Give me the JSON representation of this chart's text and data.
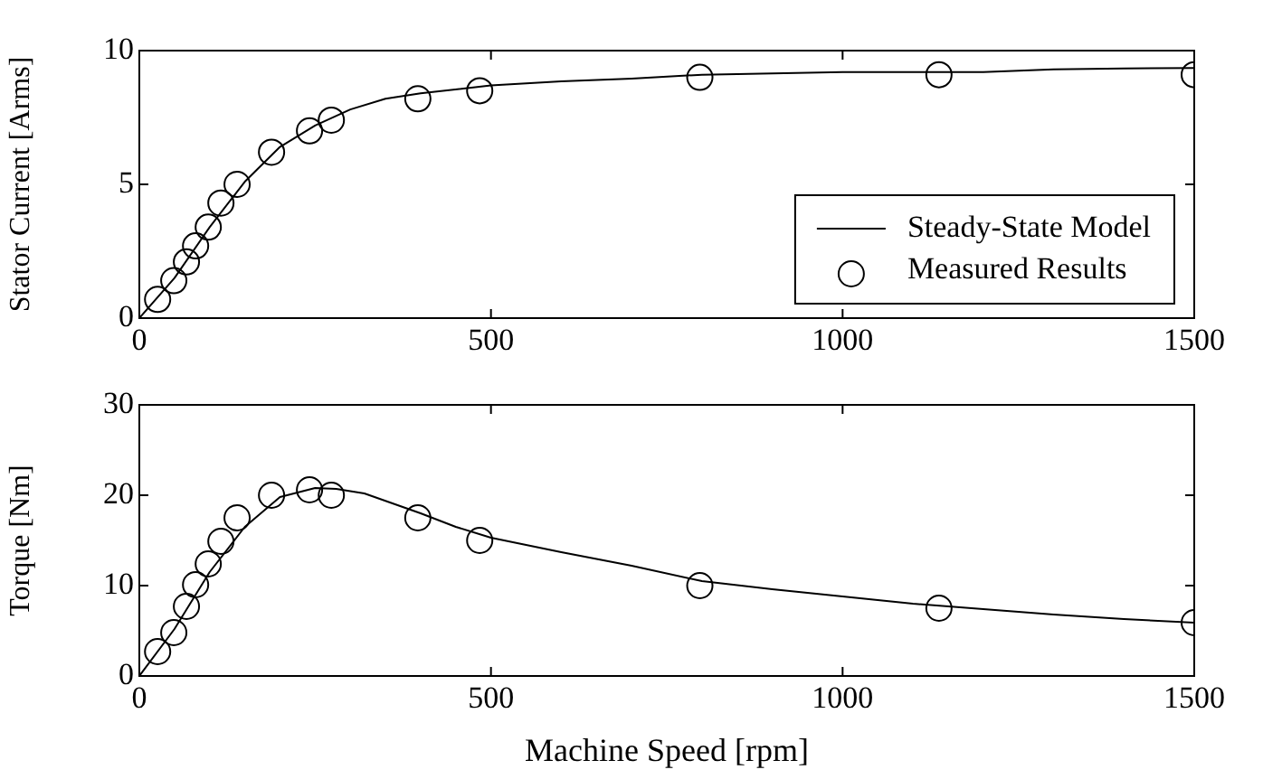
{
  "chart_data": [
    {
      "type": "line",
      "ylabel": "Stator Current [Arms]",
      "xlim": [
        0,
        1500
      ],
      "xticks": [
        0,
        500,
        1000,
        1500
      ],
      "ylim": [
        0,
        10
      ],
      "yticks": [
        0,
        5,
        10
      ],
      "grid": false,
      "legend": "bottom right",
      "series": [
        {
          "name": "Steady-State Model",
          "color": "#000000",
          "marker": "none",
          "line_style": "solid",
          "x": [
            0,
            50,
            100,
            150,
            200,
            250,
            300,
            350,
            400,
            500,
            600,
            700,
            800,
            900,
            1000,
            1100,
            1200,
            1300,
            1400,
            1500
          ],
          "values": [
            0,
            1.5,
            3.4,
            5.1,
            6.4,
            7.2,
            7.8,
            8.2,
            8.4,
            8.7,
            8.85,
            8.95,
            9.1,
            9.15,
            9.2,
            9.2,
            9.2,
            9.3,
            9.33,
            9.35
          ]
        },
        {
          "name": "Measured Results",
          "type": "scatter",
          "color": "#000000",
          "marker": "circle",
          "x": [
            26,
            49,
            67,
            80,
            98,
            116,
            139,
            188,
            242,
            273,
            396,
            484,
            797,
            1137,
            1500
          ],
          "values": [
            0.7,
            1.4,
            2.1,
            2.7,
            3.4,
            4.3,
            5.0,
            6.2,
            7.0,
            7.4,
            8.2,
            8.5,
            9.0,
            9.1,
            9.1
          ]
        }
      ]
    },
    {
      "type": "line",
      "xlabel": "Machine Speed [rpm]",
      "ylabel": "Torque [Nm]",
      "xlim": [
        0,
        1500
      ],
      "xticks": [
        0,
        500,
        1000,
        1500
      ],
      "ylim": [
        0,
        30
      ],
      "yticks": [
        0,
        10,
        20,
        30
      ],
      "grid": false,
      "legend": false,
      "series": [
        {
          "color": "#000000",
          "marker": "none",
          "line_style": "solid",
          "x": [
            0,
            50,
            100,
            150,
            200,
            250,
            280,
            320,
            400,
            450,
            500,
            600,
            700,
            800,
            900,
            1000,
            1100,
            1200,
            1300,
            1400,
            1500
          ],
          "values": [
            0,
            5.2,
            11.5,
            16.5,
            19.8,
            20.8,
            20.7,
            20.2,
            18,
            16.5,
            15.3,
            13.7,
            12.2,
            10.5,
            9.6,
            8.8,
            8.0,
            7.4,
            6.8,
            6.3,
            5.9
          ]
        },
        {
          "type": "scatter",
          "color": "#000000",
          "marker": "circle",
          "x": [
            26,
            49,
            67,
            80,
            98,
            116,
            139,
            188,
            242,
            273,
            396,
            484,
            797,
            1137,
            1500
          ],
          "values": [
            2.7,
            4.8,
            7.7,
            10.1,
            12.4,
            14.9,
            17.5,
            20.0,
            20.6,
            20.0,
            17.5,
            15.0,
            10.0,
            7.5,
            5.9
          ]
        }
      ]
    }
  ]
}
